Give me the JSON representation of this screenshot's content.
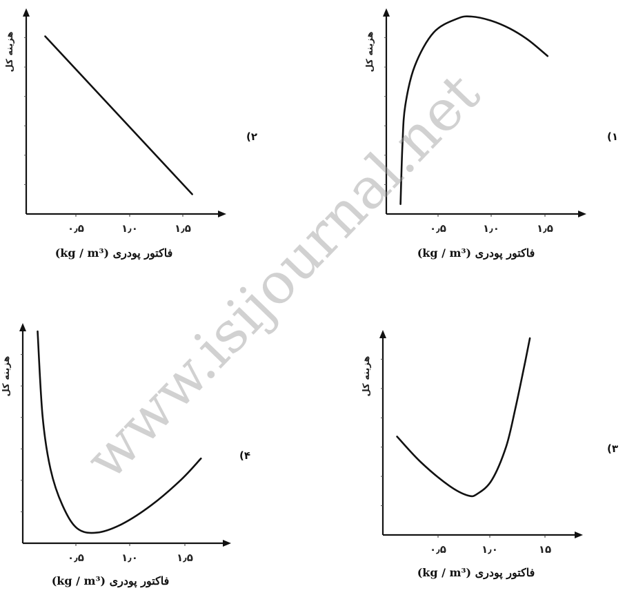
{
  "watermark": "www.isijournal.net",
  "chart_data": [
    {
      "panel": "1",
      "option_label": "(۱",
      "type": "line",
      "ylabel": "هزینه کل",
      "xlabel": "فاکتور پودری (kg / m³)",
      "x_ticks": [
        "۰٫۵",
        "۱٫۰",
        "۱٫۵"
      ],
      "x": [
        0.15,
        0.17,
        0.2,
        0.3,
        0.5,
        0.75,
        0.9,
        1.1,
        1.3,
        1.5,
        1.7
      ],
      "y": [
        0.05,
        0.35,
        0.55,
        0.75,
        0.92,
        0.99,
        1.0,
        0.98,
        0.94,
        0.88,
        0.8
      ]
    },
    {
      "panel": "2",
      "option_label": "(۲",
      "type": "line",
      "ylabel": "هزینه کل",
      "xlabel": "فاکتور پودری (kg / m³)",
      "x_ticks": [
        "۰٫۵",
        "۱٫۰",
        "۱٫۵"
      ],
      "x": [
        0.2,
        1.75
      ],
      "y": [
        0.9,
        0.1
      ]
    },
    {
      "panel": "3",
      "option_label": "(۳",
      "type": "line",
      "ylabel": "هزینه کل",
      "xlabel": "فاکتور پودری (kg / m³)",
      "x_ticks": [
        "۰٫۵",
        "۱٫۰",
        "۱۵"
      ],
      "x": [
        0.15,
        0.4,
        0.7,
        0.9,
        1.0,
        1.15,
        1.3,
        1.4,
        1.5,
        1.55
      ],
      "y": [
        0.5,
        0.37,
        0.25,
        0.2,
        0.21,
        0.28,
        0.45,
        0.65,
        0.88,
        1.0
      ]
    },
    {
      "panel": "4",
      "option_label": "(۴",
      "type": "line",
      "ylabel": "هزینه کل",
      "xlabel": "فاکتور پودری (kg / m³)",
      "x_ticks": [
        "۰٫۵",
        "۱٫۰",
        "۱٫۵"
      ],
      "x": [
        0.15,
        0.2,
        0.28,
        0.4,
        0.55,
        0.75,
        1.0,
        1.3,
        1.6,
        1.8
      ],
      "y": [
        1.0,
        0.6,
        0.35,
        0.18,
        0.07,
        0.05,
        0.09,
        0.18,
        0.3,
        0.4
      ]
    }
  ]
}
